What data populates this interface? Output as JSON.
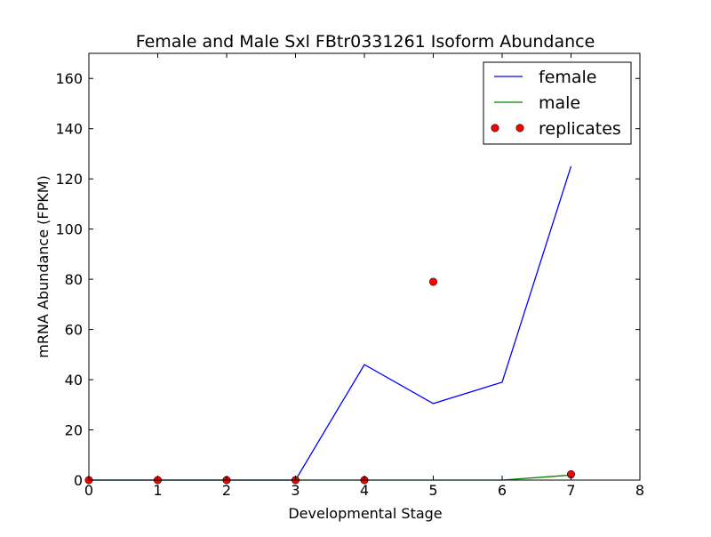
{
  "chart_data": {
    "type": "line",
    "title": "Female and Male Sxl FBtr0331261 Isoform Abundance",
    "xlabel": "Developmental Stage",
    "ylabel": "mRNA Abundance (FPKM)",
    "xlim": [
      0,
      8
    ],
    "ylim": [
      0,
      170
    ],
    "xticks": [
      0,
      1,
      2,
      3,
      4,
      5,
      6,
      7,
      8
    ],
    "yticks": [
      0,
      20,
      40,
      60,
      80,
      100,
      120,
      140,
      160
    ],
    "grid": false,
    "legend_position": "top-right",
    "series": [
      {
        "name": "female",
        "kind": "line",
        "color": "#0000ff",
        "x": [
          0,
          1,
          2,
          3,
          4,
          5,
          6,
          7
        ],
        "values": [
          0,
          0,
          0,
          0,
          46,
          30.5,
          39,
          125
        ]
      },
      {
        "name": "male",
        "kind": "line",
        "color": "#008000",
        "x": [
          0,
          1,
          2,
          3,
          4,
          5,
          6,
          7
        ],
        "values": [
          0,
          0,
          0,
          0,
          0,
          0,
          0,
          2
        ]
      },
      {
        "name": "replicates",
        "kind": "points",
        "color": "#ff0000",
        "x": [
          0,
          1,
          2,
          3,
          4,
          5,
          7
        ],
        "values": [
          0,
          0,
          0,
          0,
          0,
          79,
          2.3
        ]
      }
    ]
  }
}
